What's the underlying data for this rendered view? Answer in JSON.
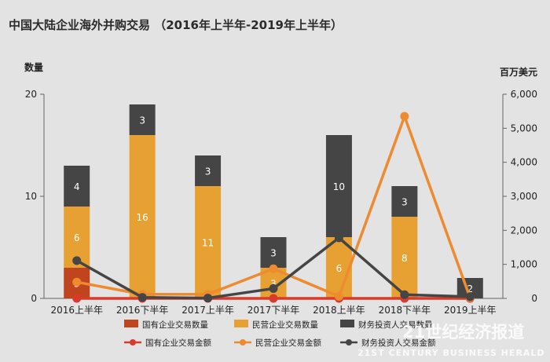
{
  "chart_data": {
    "type": "bar",
    "title": "中国大陆企业海外并购交易 （2016年上半年-2019年上半年）",
    "ylabel": "数量",
    "y2label": "百万美元",
    "ylim": [
      0,
      20
    ],
    "y2lim": [
      0,
      6000
    ],
    "yticks": [
      "0",
      "10",
      "20"
    ],
    "y2ticks": [
      "0",
      "1,000",
      "2,000",
      "3,000",
      "4,000",
      "5,000",
      "6,000"
    ],
    "categories": [
      "2016上半年",
      "2016下半年",
      "2017上半年",
      "2017下半年",
      "2018上半年",
      "2018下半年",
      "2019上半年"
    ],
    "stacked_series": [
      {
        "name": "国有企业交易数量",
        "color": "#c0441e",
        "values": [
          3,
          0,
          0,
          0,
          0,
          0,
          0
        ],
        "labels": [
          "3",
          "",
          "",
          "",
          "",
          "",
          ""
        ]
      },
      {
        "name": "民营企业交易数量",
        "color": "#e6a132",
        "values": [
          6,
          16,
          11,
          3,
          6,
          8,
          0
        ],
        "labels": [
          "6",
          "16",
          "11",
          "3",
          "6",
          "8",
          ""
        ]
      },
      {
        "name": "财务投资人交易数量",
        "color": "#454545",
        "values": [
          4,
          3,
          3,
          3,
          10,
          3,
          2
        ],
        "labels": [
          "4",
          "3",
          "3",
          "3",
          "10",
          "3",
          "2"
        ]
      }
    ],
    "line_series": [
      {
        "name": "国有企业交易金额",
        "color": "#d93a2b",
        "values": [
          0,
          0,
          0,
          0,
          0,
          0,
          0
        ]
      },
      {
        "name": "民营企业交易金额",
        "color": "#ee8a2f",
        "values": [
          480,
          120,
          120,
          870,
          60,
          5350,
          20
        ]
      },
      {
        "name": "财务投资人交易金额",
        "color": "#454545",
        "values": [
          1110,
          30,
          10,
          290,
          1780,
          110,
          50
        ]
      }
    ],
    "grid": false,
    "legend_position": "bottom"
  },
  "watermark": {
    "line1": "21世纪经济报道",
    "line2": "21ST CENTURY BUSINESS HERALD"
  }
}
